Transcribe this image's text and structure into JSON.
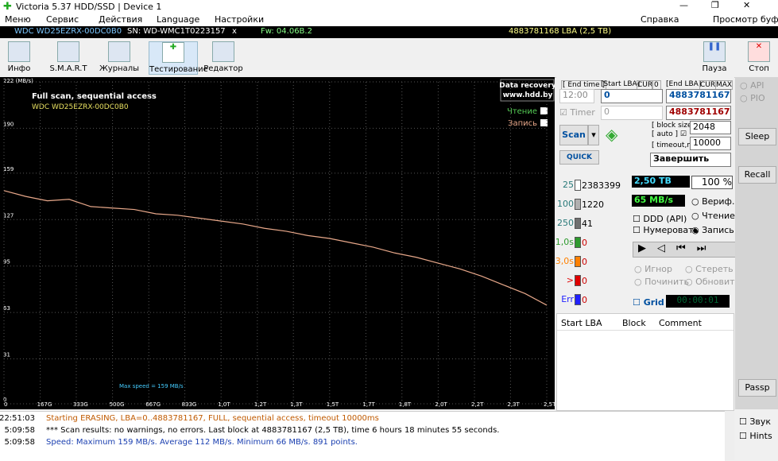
{
  "window": {
    "title": "Victoria 5.37 HDD/SSD | Device 1"
  },
  "menu": {
    "items": [
      "Меню",
      "Сервис",
      "Действия",
      "Language",
      "Настройки"
    ],
    "help": "Справка",
    "buffer": "Просмотр буфера"
  },
  "info_bar": {
    "model": "WDC WD25EZRX-00DC0B0",
    "serial": "SN: WD-WMC1T0223157",
    "close": "x",
    "firmware": "Fw: 04.06B.2",
    "capacity": "4883781168 LBA (2,5 TB)"
  },
  "toolbar": {
    "left": [
      "Инфо",
      "S.M.A.R.T",
      "Журналы",
      "Тестирование",
      "Редактор"
    ],
    "pause": "Пауза",
    "stop": "Стоп"
  },
  "chart_data": {
    "type": "line",
    "title": "Full scan, sequential access",
    "subtitle": "WDC WD25EZRX-00DC0B0",
    "badge": [
      "Data recovery",
      "www.hdd.by"
    ],
    "read_label": "Чтение",
    "annotation": "Max speed = 159 MB/s",
    "grid": true,
    "ylim": [
      0,
      222
    ],
    "yticks": [
      0,
      31,
      63,
      95,
      127,
      159,
      190,
      {
        "value": 222,
        "label": "222 (MB/s)"
      }
    ],
    "xlim": [
      0,
      2500
    ],
    "xticks": [
      0,
      {
        "value": 167,
        "label": "167G"
      },
      {
        "value": 333,
        "label": "333G"
      },
      {
        "value": 500,
        "label": "500G"
      },
      {
        "value": 667,
        "label": "667G"
      },
      {
        "value": 833,
        "label": "833G"
      },
      {
        "value": 1000,
        "label": "1,0T"
      },
      {
        "value": 1167,
        "label": "1,2T"
      },
      {
        "value": 1333,
        "label": "1,3T"
      },
      {
        "value": 1500,
        "label": "1,5T"
      },
      {
        "value": 1667,
        "label": "1,7T"
      },
      {
        "value": 1833,
        "label": "1,8T"
      },
      {
        "value": 2000,
        "label": "2,0T"
      },
      {
        "value": 2167,
        "label": "2,2T"
      },
      {
        "value": 2333,
        "label": "2,3T"
      },
      {
        "value": 2500,
        "label": "2,5T"
      }
    ],
    "x": [
      0,
      100,
      200,
      300,
      400,
      500,
      600,
      700,
      800,
      900,
      1000,
      1100,
      1200,
      1300,
      1400,
      1500,
      1600,
      1700,
      1800,
      1900,
      2000,
      2100,
      2200,
      2300,
      2400,
      2500
    ],
    "series": [
      {
        "name": "Запись",
        "color": "#e8a88a",
        "values": [
          147,
          143,
          140,
          141,
          136,
          135,
          134,
          131,
          130,
          128,
          126,
          124,
          121,
          119,
          116,
          114,
          111,
          108,
          104,
          101,
          97,
          93,
          88,
          82,
          76,
          68
        ]
      }
    ]
  },
  "scan_panel": {
    "end_time_label": "End time",
    "start_lba_label": "Start LBA",
    "cur": "CUR",
    "zero": "0",
    "end_lba_label": "End LBA",
    "cur2": "CUR",
    "max": "MAX",
    "end_time": "12:00",
    "start_lba": "0",
    "end_lba": "4883781167",
    "timer_label": "Timer",
    "timer": "0",
    "end_lba2": "4883781167",
    "scan": "Scan",
    "quick": "QUICK",
    "block_size_label": "block size",
    "auto": "auto",
    "timeout_label": "timeout,ms",
    "block_size": "2048",
    "timeout": "10000",
    "action": "Завершить"
  },
  "stats": {
    "rows": [
      {
        "label": "25",
        "count": 2383399,
        "color": "#ffffff"
      },
      {
        "label": "100",
        "count": 1220,
        "color": "#b0b0b0"
      },
      {
        "label": "250",
        "count": 41,
        "color": "#707070"
      },
      {
        "label": "1,0s",
        "count": 0,
        "color": "#2e9a2e"
      },
      {
        "label": "3,0s",
        "count": 0,
        "color": "#ff8000"
      },
      {
        "label": ">",
        "count": 0,
        "color": "#e00000"
      },
      {
        "label": "Err",
        "count": 0,
        "color": "#2020ff"
      }
    ]
  },
  "status": {
    "size": "2,50 TB",
    "percent": "100",
    "percent_unit": "%",
    "speed": "65 MB/s",
    "options": [
      "Вериф.",
      "Чтение",
      "Запись"
    ],
    "ddd": "DDD (API)",
    "numbering": "Нумеровать",
    "repair": [
      "Игнор",
      "Стереть",
      "Починить",
      "Обновить"
    ],
    "grid": "Grid",
    "clock": "00:00:01"
  },
  "table": {
    "headers": [
      "Start LBA",
      "Block",
      "Comment"
    ]
  },
  "right_panel": {
    "api": "API",
    "pio": "PIO",
    "sleep": "Sleep",
    "recall": "Recall",
    "passp": "Passp",
    "sound": "Звук",
    "hints": "Hints"
  },
  "log": [
    {
      "time": "22:51:03",
      "text": "Starting ERASING, LBA=0..4883781167, FULL, sequential access, timeout 10000ms",
      "color": "#c05a00"
    },
    {
      "time": "5:09:58",
      "text": "*** Scan results: no warnings, no errors. Last block at 4883781167 (2,5 TB), time 6 hours 18 minutes 55 seconds.",
      "color": "#000000"
    },
    {
      "time": "5:09:58",
      "text": "Speed: Maximum 159 MB/s. Average 112 MB/s. Minimum 66 MB/s. 891 points.",
      "color": "#1a3fb0"
    }
  ]
}
